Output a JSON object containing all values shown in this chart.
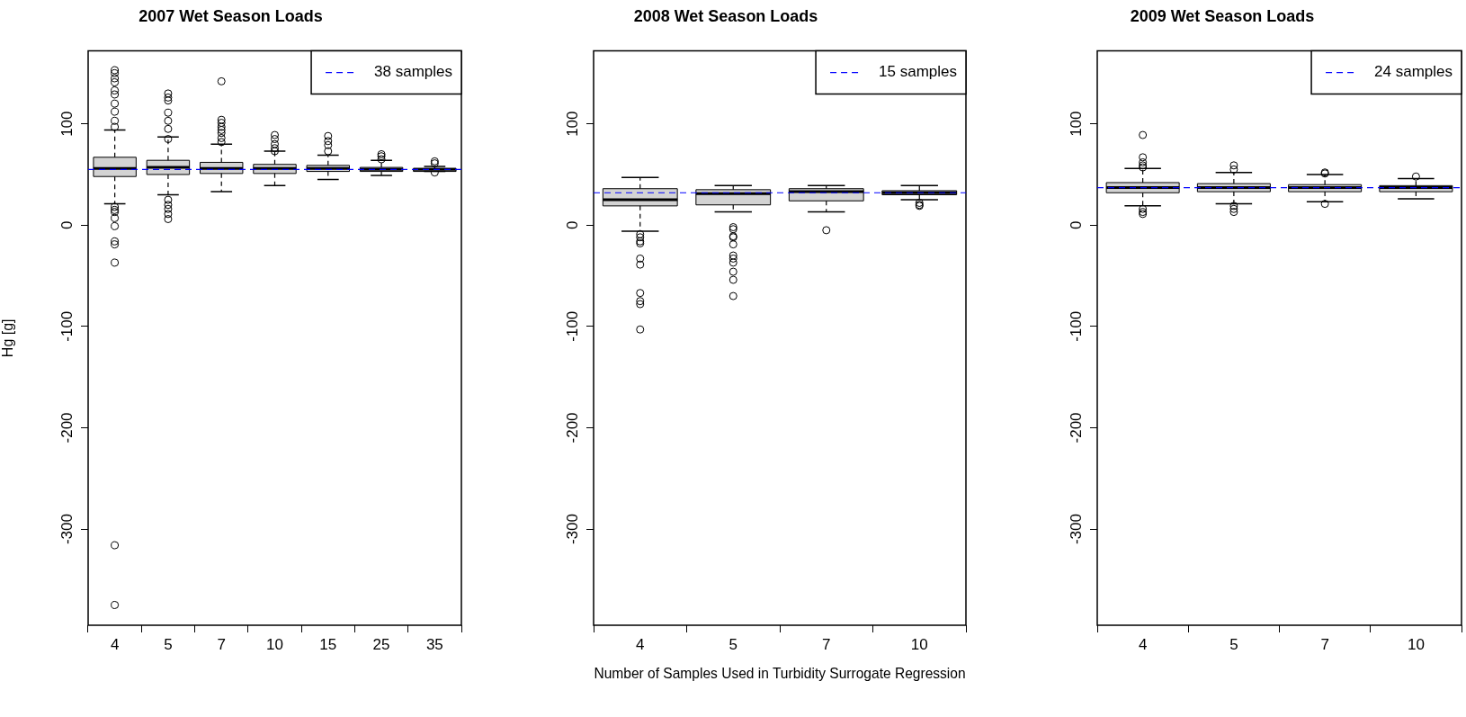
{
  "chart_data": [
    {
      "type": "box",
      "title": "2007 Wet Season Loads",
      "ylabel": "Hg [g]",
      "categories": [
        "4",
        "5",
        "7",
        "10",
        "15",
        "25",
        "35"
      ],
      "ylim": [
        -395,
        172
      ],
      "yticks": [
        -300,
        -200,
        -100,
        0,
        100
      ],
      "legend": "top right",
      "ref_lines": [
        {
          "axis": "y",
          "value": 55,
          "label": "38 samples",
          "color": "#0000ff",
          "line_style": "dashed"
        }
      ],
      "series": [
        {
          "color": "#d3d3d3",
          "boxes": [
            {
              "low": 21,
              "q1": 48,
              "median": 56,
              "q3": 67,
              "high": 94,
              "outliers": [
                153,
                150,
                145,
                141,
                133,
                129,
                120,
                112,
                103,
                97,
                18,
                15,
                13,
                7,
                -1,
                -16,
                -19,
                -37,
                -316,
                -375
              ]
            },
            {
              "low": 30,
              "q1": 50,
              "median": 57,
              "q3": 64,
              "high": 87,
              "outliers": [
                130,
                126,
                123,
                111,
                103,
                95,
                85,
                25,
                20,
                16,
                11,
                6
              ]
            },
            {
              "low": 33,
              "q1": 51,
              "median": 56,
              "q3": 62,
              "high": 80,
              "outliers": [
                142,
                104,
                101,
                97,
                94,
                91,
                86,
                82
              ]
            },
            {
              "low": 39,
              "q1": 51,
              "median": 56,
              "q3": 60,
              "high": 73,
              "outliers": [
                89,
                85,
                80,
                76,
                73
              ]
            },
            {
              "low": 45,
              "q1": 53,
              "median": 56,
              "q3": 59,
              "high": 69,
              "outliers": [
                88,
                83,
                79,
                73
              ]
            },
            {
              "low": 49,
              "q1": 53,
              "median": 55,
              "q3": 57,
              "high": 64,
              "outliers": [
                70,
                68,
                65
              ]
            },
            {
              "low": 53,
              "q1": 53,
              "median": 55,
              "q3": 56,
              "high": 58,
              "outliers": [
                63,
                61,
                52
              ]
            }
          ]
        }
      ]
    },
    {
      "type": "box",
      "title": "2008 Wet Season Loads",
      "xlabel": "Number of Samples Used in Turbidity Surrogate Regression",
      "categories": [
        "4",
        "5",
        "7",
        "10"
      ],
      "ylim": [
        -395,
        172
      ],
      "yticks": [
        -300,
        -200,
        -100,
        0,
        100
      ],
      "legend": "top right",
      "ref_lines": [
        {
          "axis": "y",
          "value": 32,
          "label": "15 samples",
          "color": "#0000ff",
          "line_style": "dashed"
        }
      ],
      "series": [
        {
          "color": "#d3d3d3",
          "boxes": [
            {
              "low": -6,
              "q1": 19,
              "median": 25,
              "q3": 36,
              "high": 47,
              "outliers": [
                -9,
                -12,
                -16,
                -18,
                -33,
                -39,
                -67,
                -75,
                -78,
                -103
              ]
            },
            {
              "low": 13,
              "q1": 20,
              "median": 31,
              "q3": 35,
              "high": 39,
              "outliers": [
                -2,
                -4,
                -11,
                -12,
                -19,
                -30,
                -33,
                -37,
                -46,
                -54,
                -70
              ]
            },
            {
              "low": 13,
              "q1": 24,
              "median": 33,
              "q3": 36,
              "high": 39,
              "outliers": [
                -5
              ]
            },
            {
              "low": 25,
              "q1": 30,
              "median": 32,
              "q3": 34,
              "high": 39,
              "outliers": [
                22,
                20,
                19
              ]
            }
          ]
        }
      ]
    },
    {
      "type": "box",
      "title": "2009 Wet Season Loads",
      "categories": [
        "4",
        "5",
        "7",
        "10"
      ],
      "ylim": [
        -395,
        172
      ],
      "yticks": [
        -300,
        -200,
        -100,
        0,
        100
      ],
      "legend": "top right",
      "ref_lines": [
        {
          "axis": "y",
          "value": 37,
          "label": "24 samples",
          "color": "#0000ff",
          "line_style": "dashed"
        }
      ],
      "series": [
        {
          "color": "#d3d3d3",
          "boxes": [
            {
              "low": 19,
              "q1": 32,
              "median": 37,
              "q3": 42,
              "high": 56,
              "outliers": [
                89,
                67,
                62,
                59,
                57,
                16,
                13,
                11
              ]
            },
            {
              "low": 21,
              "q1": 33,
              "median": 37,
              "q3": 41,
              "high": 52,
              "outliers": [
                59,
                55,
                19,
                16,
                13
              ]
            },
            {
              "low": 23,
              "q1": 33,
              "median": 37,
              "q3": 40,
              "high": 50,
              "outliers": [
                52,
                51,
                21
              ]
            },
            {
              "low": 26,
              "q1": 33,
              "median": 37,
              "q3": 39,
              "high": 46,
              "outliers": [
                48
              ]
            }
          ]
        }
      ]
    }
  ]
}
